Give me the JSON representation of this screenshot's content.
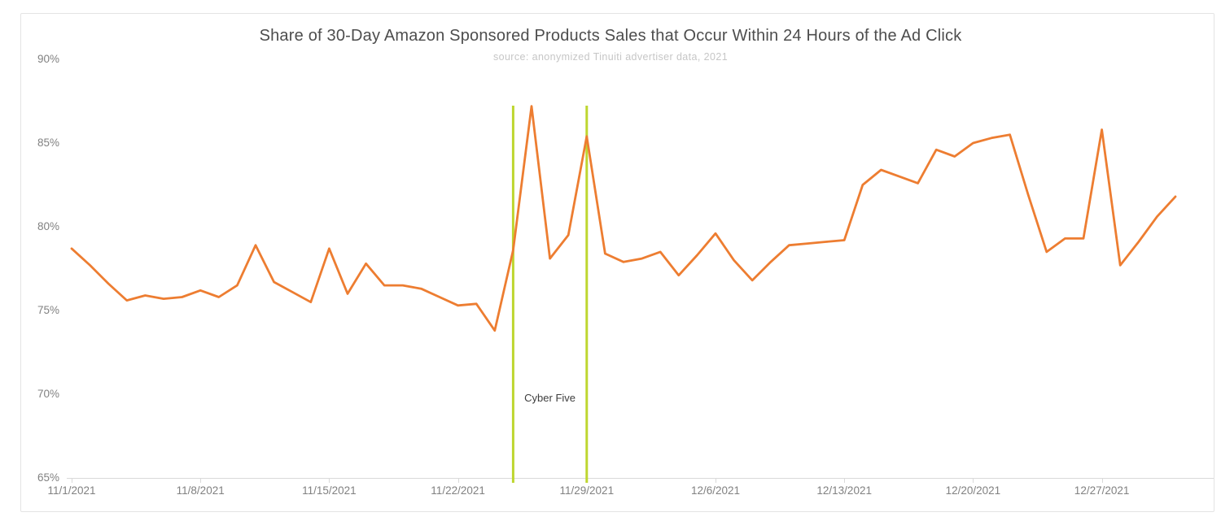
{
  "title": "Share of 30-Day Amazon Sponsored Products Sales that Occur Within 24 Hours of the Ad Click",
  "subtitle": "source: anonymized Tinuiti advertiser data, 2021",
  "annotation": {
    "label": "Cyber Five",
    "start_date": "11/25/2021",
    "end_date": "11/29/2021"
  },
  "colors": {
    "line": "#ED7D31",
    "annotation_line": "#BED62F",
    "title_text": "#4D4D4D",
    "subtitle_text": "#C6C6C6",
    "axis_text": "#818181",
    "axis_line": "#D9D9D9",
    "frame_border": "#E4E4E4",
    "annotation_text": "#3D3D3D",
    "background": "#FFFFFF"
  },
  "chart_data": {
    "type": "line",
    "title": "Share of 30-Day Amazon Sponsored Products Sales that Occur Within 24 Hours of the Ad Click",
    "subtitle": "source: anonymized Tinuiti advertiser data, 2021",
    "xlabel": "",
    "ylabel": "",
    "ylim": [
      65,
      90
    ],
    "grid": "off",
    "legend": "none",
    "y_tick_labels": [
      "90%",
      "85%",
      "80%",
      "75%",
      "70%",
      "65%"
    ],
    "x_tick_labels": [
      "11/1/2021",
      "11/8/2021",
      "11/15/2021",
      "11/22/2021",
      "11/29/2021",
      "12/6/2021",
      "12/13/2021",
      "12/20/2021",
      "12/27/2021"
    ],
    "x": [
      "11/1/2021",
      "11/2/2021",
      "11/3/2021",
      "11/4/2021",
      "11/5/2021",
      "11/6/2021",
      "11/7/2021",
      "11/8/2021",
      "11/9/2021",
      "11/10/2021",
      "11/11/2021",
      "11/12/2021",
      "11/13/2021",
      "11/14/2021",
      "11/15/2021",
      "11/16/2021",
      "11/17/2021",
      "11/18/2021",
      "11/19/2021",
      "11/20/2021",
      "11/21/2021",
      "11/22/2021",
      "11/23/2021",
      "11/24/2021",
      "11/25/2021",
      "11/26/2021",
      "11/27/2021",
      "11/28/2021",
      "11/29/2021",
      "11/30/2021",
      "12/1/2021",
      "12/2/2021",
      "12/3/2021",
      "12/4/2021",
      "12/5/2021",
      "12/6/2021",
      "12/7/2021",
      "12/8/2021",
      "12/9/2021",
      "12/10/2021",
      "12/11/2021",
      "12/12/2021",
      "12/13/2021",
      "12/14/2021",
      "12/15/2021",
      "12/16/2021",
      "12/17/2021",
      "12/18/2021",
      "12/19/2021",
      "12/20/2021",
      "12/21/2021",
      "12/22/2021",
      "12/23/2021",
      "12/24/2021",
      "12/25/2021",
      "12/26/2021",
      "12/27/2021",
      "12/28/2021",
      "12/29/2021",
      "12/30/2021",
      "12/31/2021"
    ],
    "values": [
      78.7,
      77.7,
      76.6,
      75.6,
      75.9,
      75.7,
      75.8,
      76.2,
      75.8,
      76.5,
      78.9,
      76.7,
      76.1,
      75.5,
      78.7,
      76.0,
      77.8,
      76.5,
      76.5,
      76.3,
      75.8,
      75.3,
      75.4,
      73.8,
      78.6,
      87.2,
      78.1,
      79.5,
      85.4,
      78.4,
      77.9,
      78.1,
      78.5,
      77.1,
      78.3,
      79.6,
      78.0,
      76.8,
      77.9,
      78.9,
      79.0,
      79.1,
      79.2,
      82.5,
      83.4,
      83.0,
      82.6,
      84.6,
      84.2,
      85.0,
      85.3,
      85.5,
      81.9,
      78.5,
      79.3,
      79.3,
      85.8,
      77.7,
      79.1,
      80.6,
      81.8
    ],
    "vlines": {
      "label": "Cyber Five",
      "dates": [
        "11/25/2021",
        "11/29/2021"
      ]
    }
  }
}
